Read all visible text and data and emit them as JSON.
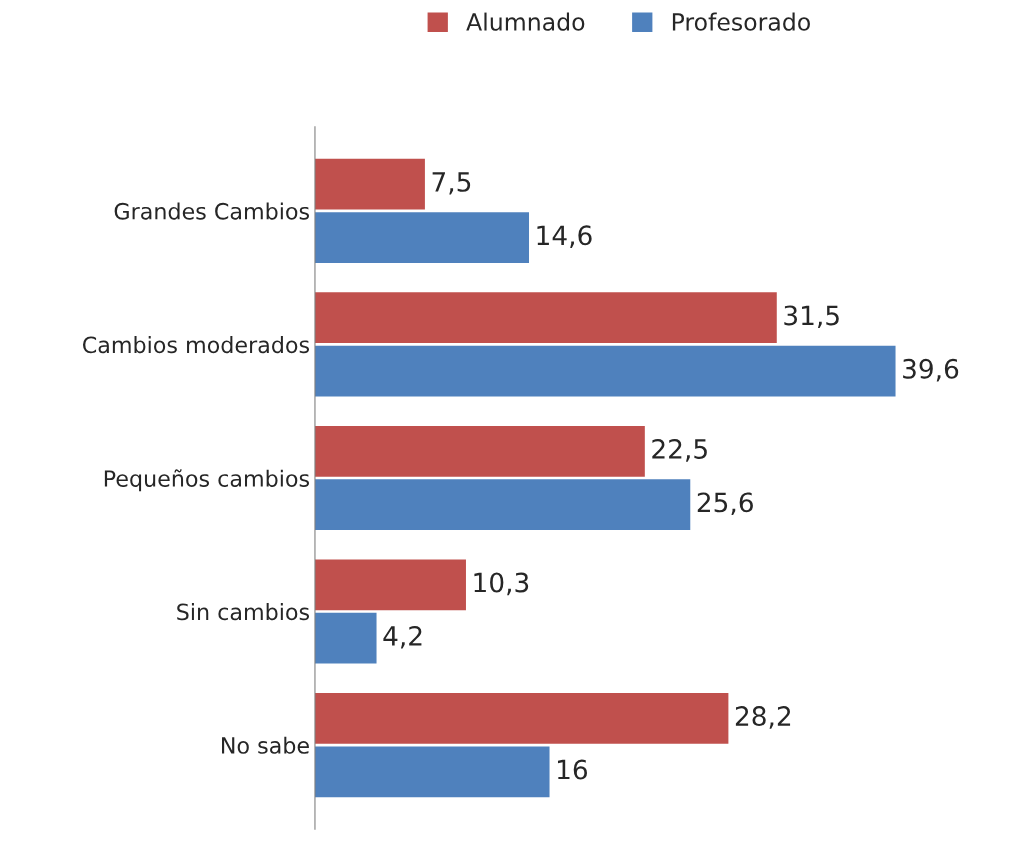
{
  "chart_data": {
    "type": "bar",
    "orientation": "horizontal",
    "categories": [
      "Grandes Cambios",
      "Cambios moderados",
      "Pequeños cambios",
      "Sin cambios",
      "No sabe"
    ],
    "series": [
      {
        "name": "Alumnado",
        "color": "#c0504d",
        "values": [
          7.5,
          31.5,
          22.5,
          10.3,
          28.2
        ],
        "value_labels": [
          "7,5",
          "31,5",
          "22,5",
          "10,3",
          "28,2"
        ]
      },
      {
        "name": "Profesorado",
        "color": "#4f81bd",
        "values": [
          14.6,
          39.6,
          25.6,
          4.2,
          16
        ],
        "value_labels": [
          "14,6",
          "39,6",
          "25,6",
          "4,2",
          "16"
        ]
      }
    ],
    "legend": "top",
    "tick_labels": "y",
    "grid": false
  }
}
